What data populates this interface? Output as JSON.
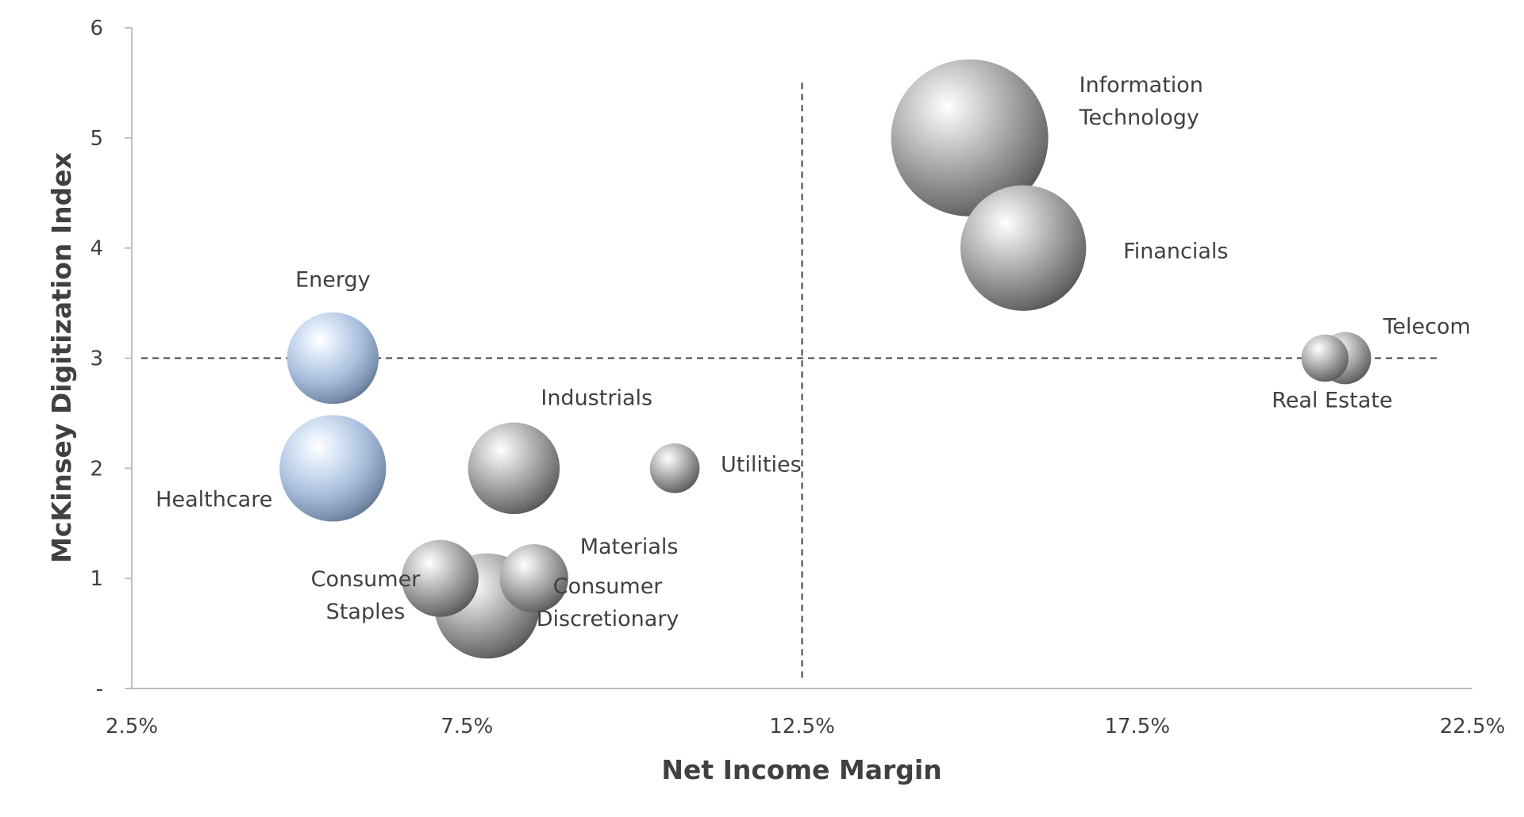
{
  "chart_data": {
    "type": "bubble",
    "xlabel": "Net Income Margin",
    "ylabel": "McKinsey Digitization Index",
    "xlim": [
      0.025,
      0.225
    ],
    "ylim": [
      0,
      6
    ],
    "x_ticks": [
      "2.5%",
      "7.5%",
      "12.5%",
      "17.5%",
      "22.5%"
    ],
    "y_ticks": [
      "-",
      "1",
      "2",
      "3",
      "4",
      "5",
      "6"
    ],
    "reference_lines": {
      "x": 0.125,
      "y": 3
    },
    "grid": false,
    "colors": {
      "highlight": "#a9bfdd",
      "default": "#9a9a9a"
    },
    "points": [
      {
        "label": "Information\nTechnology",
        "x": 0.15,
        "y": 5.0,
        "size": 100,
        "highlight": false
      },
      {
        "label": "Financials",
        "x": 0.158,
        "y": 4.0,
        "size": 64,
        "highlight": false
      },
      {
        "label": "Telecom",
        "x": 0.206,
        "y": 3.0,
        "size": 11,
        "highlight": false
      },
      {
        "label": "Real Estate",
        "x": 0.203,
        "y": 3.0,
        "size": 9,
        "highlight": false
      },
      {
        "label": "Energy",
        "x": 0.055,
        "y": 3.0,
        "size": 34,
        "highlight": true
      },
      {
        "label": "Healthcare",
        "x": 0.055,
        "y": 2.0,
        "size": 46,
        "highlight": true
      },
      {
        "label": "Industrials",
        "x": 0.082,
        "y": 2.0,
        "size": 34,
        "highlight": false
      },
      {
        "label": "Utilities",
        "x": 0.106,
        "y": 2.0,
        "size": 10,
        "highlight": false
      },
      {
        "label": "Consumer\nDiscretionary",
        "x": 0.078,
        "y": 0.75,
        "size": 45,
        "highlight": false
      },
      {
        "label": "Consumer\nStaples",
        "x": 0.071,
        "y": 1.0,
        "size": 24,
        "highlight": false
      },
      {
        "label": "Materials",
        "x": 0.085,
        "y": 1.0,
        "size": 19,
        "highlight": false
      }
    ]
  }
}
